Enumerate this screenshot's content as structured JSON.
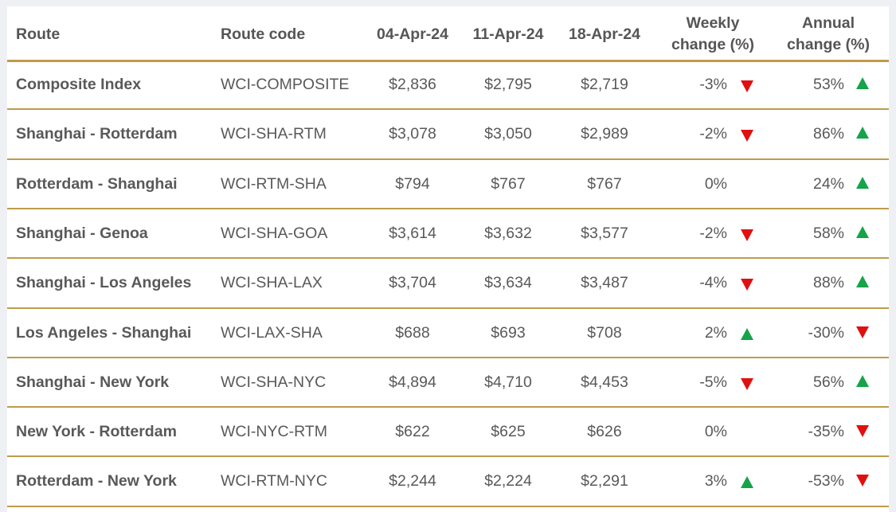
{
  "chart_data": {
    "type": "table",
    "columns": [
      "Route",
      "Route code",
      "04-Apr-24",
      "11-Apr-24",
      "18-Apr-24",
      "Weekly change (%)",
      "Annual change (%)"
    ],
    "header": {
      "route": "Route",
      "code": "Route code",
      "d1": "04-Apr-24",
      "d2": "11-Apr-24",
      "d3": "18-Apr-24",
      "weekly_l1": "Weekly",
      "weekly_l2": "change (%)",
      "annual_l1": "Annual",
      "annual_l2": "change (%)"
    },
    "rows": [
      {
        "route": "Composite Index",
        "code": "WCI-COMPOSITE",
        "d1": "$2,836",
        "d2": "$2,795",
        "d3": "$2,719",
        "weekly": "-3%",
        "weekly_dir": "down",
        "annual": "53%",
        "annual_dir": "up"
      },
      {
        "route": "Shanghai - Rotterdam",
        "code": "WCI-SHA-RTM",
        "d1": "$3,078",
        "d2": "$3,050",
        "d3": "$2,989",
        "weekly": "-2%",
        "weekly_dir": "down",
        "annual": "86%",
        "annual_dir": "up"
      },
      {
        "route": "Rotterdam - Shanghai",
        "code": "WCI-RTM-SHA",
        "d1": "$794",
        "d2": "$767",
        "d3": "$767",
        "weekly": "0%",
        "weekly_dir": "none",
        "annual": "24%",
        "annual_dir": "up"
      },
      {
        "route": "Shanghai - Genoa",
        "code": "WCI-SHA-GOA",
        "d1": "$3,614",
        "d2": "$3,632",
        "d3": "$3,577",
        "weekly": "-2%",
        "weekly_dir": "down",
        "annual": "58%",
        "annual_dir": "up"
      },
      {
        "route": "Shanghai - Los Angeles",
        "code": "WCI-SHA-LAX",
        "d1": "$3,704",
        "d2": "$3,634",
        "d3": "$3,487",
        "weekly": "-4%",
        "weekly_dir": "down",
        "annual": "88%",
        "annual_dir": "up"
      },
      {
        "route": "Los Angeles - Shanghai",
        "code": "WCI-LAX-SHA",
        "d1": "$688",
        "d2": "$693",
        "d3": "$708",
        "weekly": "2%",
        "weekly_dir": "up",
        "annual": "-30%",
        "annual_dir": "down"
      },
      {
        "route": "Shanghai - New York",
        "code": "WCI-SHA-NYC",
        "d1": "$4,894",
        "d2": "$4,710",
        "d3": "$4,453",
        "weekly": "-5%",
        "weekly_dir": "down",
        "annual": "56%",
        "annual_dir": "up"
      },
      {
        "route": "New York - Rotterdam",
        "code": "WCI-NYC-RTM",
        "d1": "$622",
        "d2": "$625",
        "d3": "$626",
        "weekly": "0%",
        "weekly_dir": "none",
        "annual": "-35%",
        "annual_dir": "down"
      },
      {
        "route": "Rotterdam - New York",
        "code": "WCI-RTM-NYC",
        "d1": "$2,244",
        "d2": "$2,224",
        "d3": "$2,291",
        "weekly": "3%",
        "weekly_dir": "up",
        "annual": "-53%",
        "annual_dir": "down"
      }
    ],
    "colors": {
      "up": "#16a34a",
      "down": "#e01010",
      "rule": "#bf9b4c",
      "text": "#595959"
    }
  }
}
